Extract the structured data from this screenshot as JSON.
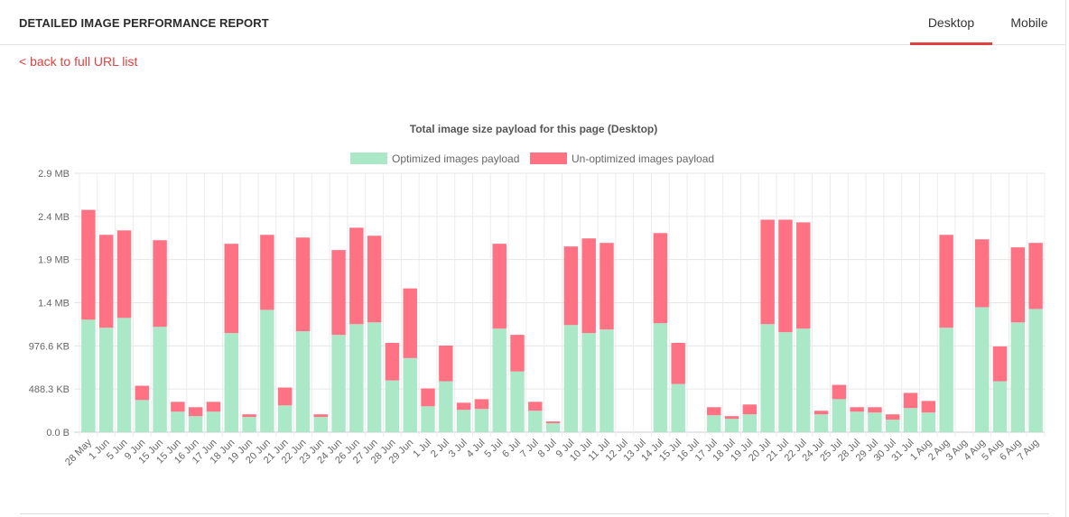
{
  "header": {
    "title": "DETAILED IMAGE PERFORMANCE REPORT",
    "tabs": [
      {
        "label": "Desktop",
        "active": true
      },
      {
        "label": "Mobile",
        "active": false
      }
    ]
  },
  "back_link": "< back to full URL list",
  "colors": {
    "accent": "#e0403f",
    "optimized": "#abe8c8",
    "unoptimized": "#ff7283"
  },
  "chart_data": {
    "type": "bar",
    "stacked": true,
    "title": "Total image size payload for this page (Desktop)",
    "legend_position": "top",
    "grid": true,
    "y_tick_labels": [
      "0.0 B",
      "488.3 KB",
      "976.6 KB",
      "1.4 MB",
      "1.9 MB",
      "2.4 MB",
      "2.9 MB"
    ],
    "y_unit": "MB",
    "ylim": [
      0,
      2.9
    ],
    "categories": [
      "28 May",
      "1 Jun",
      "5 Jun",
      "9 Jun",
      "15 Jun",
      "15 Jun",
      "16 Jun",
      "17 Jun",
      "18 Jun",
      "19 Jun",
      "20 Jun",
      "21 Jun",
      "22 Jun",
      "23 Jun",
      "24 Jun",
      "26 Jun",
      "27 Jun",
      "28 Jun",
      "29 Jun",
      "1 Jul",
      "2 Jul",
      "3 Jul",
      "4 Jul",
      "5 Jul",
      "6 Jul",
      "7 Jul",
      "8 Jul",
      "9 Jul",
      "10 Jul",
      "11 Jul",
      "12 Jul",
      "13 Jul",
      "14 Jul",
      "15 Jul",
      "16 Jul",
      "17 Jul",
      "18 Jul",
      "19 Jul",
      "20 Jul",
      "21 Jul",
      "22 Jul",
      "24 Jul",
      "25 Jul",
      "28 Jul",
      "29 Jul",
      "30 Jul",
      "31 Jul",
      "1 Aug",
      "2 Aug",
      "3 Aug",
      "4 Aug",
      "5 Aug",
      "6 Aug",
      "7 Aug"
    ],
    "series": [
      {
        "name": "Optimized images payload",
        "values": [
          1.26,
          1.17,
          1.28,
          0.36,
          1.18,
          0.23,
          0.18,
          0.23,
          1.11,
          0.17,
          1.37,
          0.3,
          1.13,
          0.17,
          1.09,
          1.21,
          1.23,
          0.58,
          0.83,
          0.29,
          0.57,
          0.25,
          0.26,
          1.16,
          0.68,
          0.24,
          0.1,
          1.2,
          1.11,
          1.15,
          0,
          0,
          1.22,
          0.54,
          0,
          0.19,
          0.15,
          0.2,
          1.21,
          1.12,
          1.16,
          0.2,
          0.37,
          0.23,
          0.22,
          0.14,
          0.27,
          0.22,
          1.17,
          0,
          1.4,
          0.57,
          1.23,
          1.38
        ]
      },
      {
        "name": "Un-optimized images payload",
        "values": [
          1.23,
          1.04,
          0.98,
          0.16,
          0.97,
          0.11,
          0.1,
          0.11,
          1.0,
          0.03,
          0.84,
          0.2,
          1.05,
          0.03,
          0.95,
          1.08,
          0.97,
          0.42,
          0.78,
          0.2,
          0.4,
          0.08,
          0.11,
          0.95,
          0.41,
          0.1,
          0.02,
          0.88,
          1.06,
          0.97,
          0,
          0,
          1.01,
          0.46,
          0,
          0.09,
          0.03,
          0.11,
          1.17,
          1.26,
          1.19,
          0.04,
          0.16,
          0.05,
          0.06,
          0.06,
          0.17,
          0.13,
          1.04,
          0,
          0.76,
          0.39,
          0.84,
          0.74
        ]
      }
    ]
  }
}
